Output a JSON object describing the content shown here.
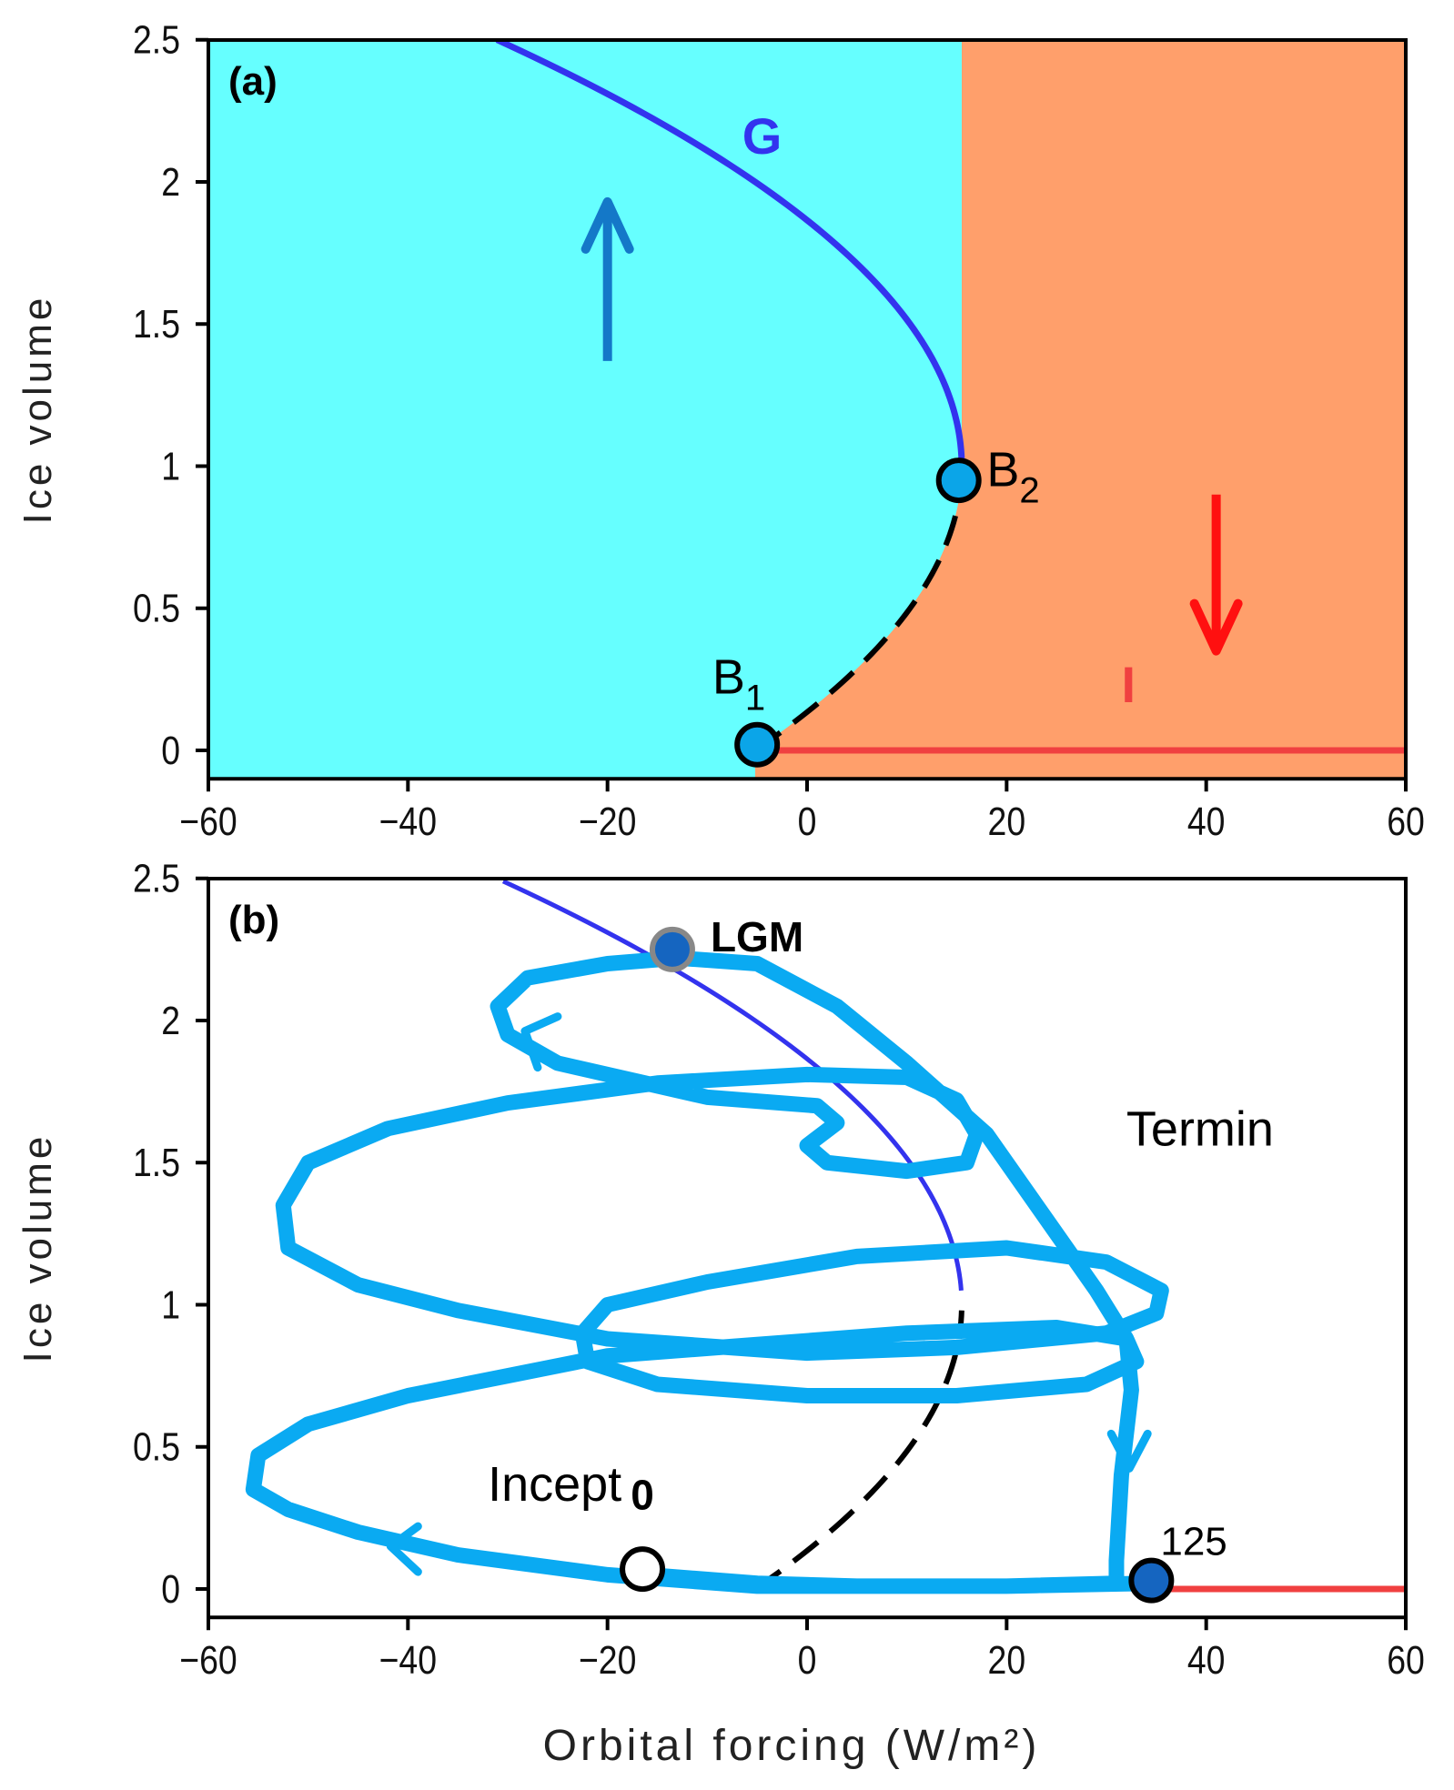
{
  "colors": {
    "glacial_region": "#66FFFF",
    "interglacial_region": "#FF9F6B",
    "branch_G": "#3333EE",
    "branch_I": "#F04040",
    "unstable": "#000000",
    "trajectory": "#0AAAF2",
    "marker_fill": "#0BA5E8",
    "marker_dark": "#1565C0",
    "arrow_up": "#1478C8",
    "arrow_down": "#FF1010"
  },
  "chart_data": [
    {
      "type": "line",
      "panel_label": "(a)",
      "xlabel": "",
      "ylabel": "Ice volume",
      "xlim": [
        -60,
        60
      ],
      "ylim": [
        -0.1,
        2.5
      ],
      "xticks": [
        -60,
        -40,
        -20,
        0,
        20,
        40,
        60
      ],
      "xtick_labels": [
        "−60",
        "−40",
        "−20",
        "0",
        "20",
        "40",
        "60"
      ],
      "yticks": [
        0,
        0.5,
        1,
        1.5,
        2,
        2.5
      ],
      "ytick_labels": [
        "0",
        "0.5",
        "1",
        "1.5",
        "2",
        "2.5"
      ],
      "regions": [
        {
          "name": "glacial",
          "color_key": "glacial_region"
        },
        {
          "name": "interglacial",
          "color_key": "interglacial_region",
          "boundary_x": 15.5
        }
      ],
      "branch_fold": {
        "x": 15.5,
        "y": 1.0,
        "curvature": 20.7
      },
      "series": [
        {
          "name": "G",
          "style": "solid",
          "y_range": [
            1.0,
            2.5
          ]
        },
        {
          "name": "unstable",
          "style": "dashed",
          "y_range": [
            0.0,
            1.0
          ]
        },
        {
          "name": "I",
          "style": "solid",
          "x": [
            -4,
            60
          ],
          "y": [
            0,
            0
          ]
        }
      ],
      "annotations": [
        {
          "text": "G",
          "x": -6.5,
          "y": 2.1,
          "color_key": "branch_G"
        },
        {
          "text": "I",
          "x": 31.5,
          "y": 0.17,
          "color_key": "branch_I"
        },
        {
          "text": "B",
          "sub": "2",
          "x": 18,
          "y": 0.93
        },
        {
          "text": "B",
          "sub": "1",
          "x": -9.5,
          "y": 0.2
        }
      ],
      "points": [
        {
          "name": "B2",
          "x": 15.2,
          "y": 0.95
        },
        {
          "name": "B1",
          "x": -5,
          "y": 0.02
        }
      ],
      "arrows": [
        {
          "direction": "up",
          "x": -20,
          "y_from": 1.37,
          "y_to": 1.93,
          "color_key": "arrow_up"
        },
        {
          "direction": "down",
          "x": 41,
          "y_from": 0.9,
          "y_to": 0.35,
          "color_key": "arrow_down"
        }
      ]
    },
    {
      "type": "line",
      "panel_label": "(b)",
      "xlabel": "Orbital forcing (W/m²)",
      "ylabel": "Ice volume",
      "xlim": [
        -60,
        60
      ],
      "ylim": [
        -0.1,
        2.5
      ],
      "xticks": [
        -60,
        -40,
        -20,
        0,
        20,
        40,
        60
      ],
      "xtick_labels": [
        "−60",
        "−40",
        "−20",
        "0",
        "20",
        "40",
        "60"
      ],
      "yticks": [
        0,
        0.5,
        1,
        1.5,
        2,
        2.5
      ],
      "ytick_labels": [
        "0",
        "0.5",
        "1",
        "1.5",
        "2",
        "2.5"
      ],
      "trajectory": {
        "x": [
          34.4,
          20,
          5,
          -5,
          -20,
          -35,
          -45,
          -52,
          -55.5,
          -55,
          -50,
          -40,
          -30,
          -20,
          -5,
          10,
          25,
          32,
          33,
          28,
          15,
          0,
          -15,
          -22,
          -22.5,
          -20,
          -10,
          5,
          20,
          30,
          35.5,
          35,
          30,
          15,
          0,
          -20,
          -35,
          -45,
          -52,
          -52.5,
          -50,
          -42,
          -30,
          -15,
          0,
          10,
          15,
          17,
          16,
          10,
          2,
          0,
          3,
          1,
          -10,
          -25,
          -30,
          -31,
          -28,
          -20,
          -13,
          -5,
          3,
          10,
          18,
          24,
          29,
          32,
          32.5,
          31.5,
          31,
          31,
          20,
          5,
          -5,
          -16
        ],
        "y": [
          0.02,
          0.01,
          0.01,
          0.01,
          0.05,
          0.12,
          0.2,
          0.28,
          0.35,
          0.47,
          0.58,
          0.68,
          0.75,
          0.82,
          0.86,
          0.9,
          0.92,
          0.88,
          0.8,
          0.72,
          0.68,
          0.68,
          0.72,
          0.8,
          0.9,
          1.0,
          1.08,
          1.17,
          1.2,
          1.15,
          1.05,
          0.97,
          0.9,
          0.85,
          0.83,
          0.88,
          0.98,
          1.07,
          1.2,
          1.35,
          1.5,
          1.62,
          1.71,
          1.78,
          1.81,
          1.8,
          1.72,
          1.6,
          1.5,
          1.47,
          1.5,
          1.56,
          1.64,
          1.7,
          1.73,
          1.85,
          1.95,
          2.05,
          2.15,
          2.2,
          2.22,
          2.2,
          2.05,
          1.85,
          1.6,
          1.3,
          1.05,
          0.88,
          0.7,
          0.4,
          0.1,
          0.02,
          0.01,
          0.01,
          0.02,
          0.05
        ]
      },
      "series": [
        {
          "name": "G",
          "style": "solid",
          "y_range": [
            1.05,
            2.5
          ]
        },
        {
          "name": "unstable",
          "style": "dashed",
          "y_range": [
            0.0,
            0.98
          ]
        },
        {
          "name": "I",
          "style": "solid",
          "x": [
            34,
            60
          ],
          "y": [
            0,
            0
          ]
        }
      ],
      "points": [
        {
          "name": "LGM",
          "x": -13.5,
          "y": 2.25,
          "label": "LGM"
        },
        {
          "name": "0",
          "x": -16.5,
          "y": 0.07,
          "label": "0"
        },
        {
          "name": "125",
          "x": 34.5,
          "y": 0.03,
          "label": "125"
        }
      ],
      "annotations": [
        {
          "text": "Termin",
          "x": 32,
          "y": 1.56
        },
        {
          "text": "Incept",
          "x": -32,
          "y": 0.31
        }
      ],
      "arrows": [
        {
          "direction": "up-left",
          "x": -27,
          "y": 1.95
        },
        {
          "direction": "left",
          "x": -41,
          "y": 0.15
        },
        {
          "direction": "down",
          "x": 32.3,
          "y": 0.45
        }
      ]
    }
  ]
}
